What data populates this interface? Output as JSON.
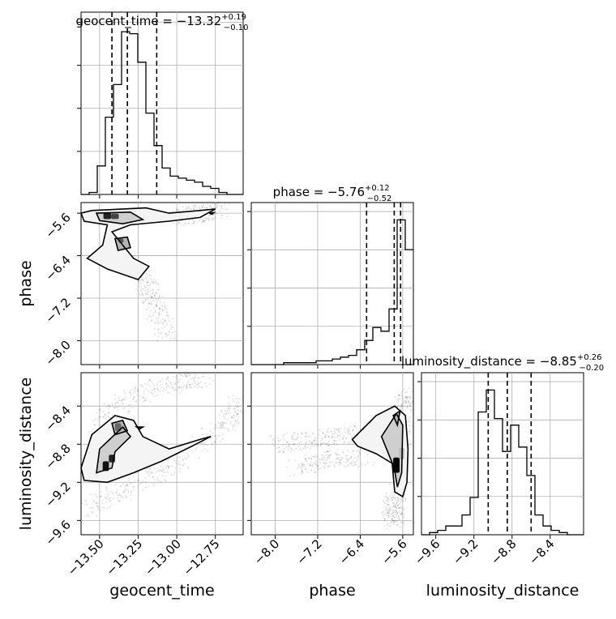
{
  "chart_data": {
    "type": "corner",
    "parameters": [
      {
        "key": "geocent_time",
        "name": "geocent_time",
        "range": [
          -13.62,
          -12.57
        ],
        "ticks": [
          -13.5,
          -13.25,
          -13.0,
          -12.75
        ],
        "tick_labels": [
          "−13.50",
          "−13.25",
          "−13.00",
          "−12.75"
        ],
        "quantiles": [
          -13.42,
          -13.32,
          -13.13
        ],
        "title_prefix": "geocent_time = −13.32",
        "title_plus": "+0.19",
        "title_minus": "−0.10",
        "hist_edges_start": -13.62,
        "hist_bin_width": 0.0525,
        "hist_counts": [
          0,
          1,
          14,
          38,
          54,
          80,
          79,
          65,
          40,
          24,
          13,
          9,
          8,
          7,
          6,
          4,
          3,
          1,
          0,
          0
        ]
      },
      {
        "key": "phase",
        "name": "phase",
        "range": [
          -8.45,
          -5.4
        ],
        "ticks": [
          -8.0,
          -7.2,
          -6.4,
          -5.6
        ],
        "tick_labels": [
          "−8.0",
          "−7.2",
          "−6.4",
          "−5.6"
        ],
        "quantiles": [
          -6.28,
          -5.76,
          -5.64
        ],
        "title_prefix": "phase = −5.76",
        "title_plus": "+0.12",
        "title_minus": "−0.52",
        "hist_edges_start": -8.45,
        "hist_bin_width": 0.1525,
        "hist_counts": [
          0,
          0,
          0,
          0,
          1,
          1,
          1,
          1,
          2,
          2,
          3,
          4,
          5,
          8,
          13,
          20,
          18,
          30,
          78,
          62
        ]
      },
      {
        "key": "luminosity_distance",
        "name": "luminosity_distance",
        "range": [
          -9.75,
          -8.05
        ],
        "ticks": [
          -9.6,
          -9.2,
          -8.8,
          -8.4
        ],
        "tick_labels": [
          "−9.6",
          "−9.2",
          "−8.8",
          "−8.4"
        ],
        "quantiles": [
          -9.05,
          -8.85,
          -8.6
        ],
        "title_prefix": "luminosity_distance = −8.85",
        "title_plus": "+0.26",
        "title_minus": "−0.20",
        "hist_edges_start": -9.75,
        "hist_bin_width": 0.085,
        "hist_counts": [
          0,
          1,
          2,
          4,
          4,
          9,
          17,
          56,
          66,
          53,
          38,
          50,
          40,
          27,
          9,
          4,
          2,
          1,
          0,
          0
        ]
      }
    ],
    "pairs": [
      {
        "x": "geocent_time",
        "y": "phase",
        "contours": [
          [
            [
              -13.55,
              -5.55
            ],
            [
              -13.2,
              -5.5
            ],
            [
              -13.05,
              -5.6
            ],
            [
              -12.85,
              -5.55
            ],
            [
              -12.75,
              -5.52
            ],
            [
              -12.85,
              -5.68
            ],
            [
              -13.05,
              -5.75
            ],
            [
              -13.3,
              -5.82
            ],
            [
              -13.42,
              -5.95
            ],
            [
              -13.35,
              -6.2
            ],
            [
              -13.28,
              -6.45
            ],
            [
              -13.18,
              -6.6
            ],
            [
              -13.25,
              -6.85
            ],
            [
              -13.45,
              -6.65
            ],
            [
              -13.58,
              -6.45
            ],
            [
              -13.48,
              -6.2
            ],
            [
              -13.45,
              -5.82
            ],
            [
              -13.6,
              -5.75
            ],
            [
              -13.62,
              -5.6
            ]
          ],
          [
            [
              -13.52,
              -5.6
            ],
            [
              -13.3,
              -5.58
            ],
            [
              -13.22,
              -5.72
            ],
            [
              -13.35,
              -5.8
            ],
            [
              -13.5,
              -5.74
            ]
          ],
          [
            [
              -13.4,
              -6.08
            ],
            [
              -13.32,
              -6.05
            ],
            [
              -13.3,
              -6.25
            ],
            [
              -13.38,
              -6.3
            ]
          ],
          [
            [
              -12.79,
              -5.6
            ],
            [
              -12.76,
              -5.59
            ],
            [
              -12.77,
              -5.62
            ]
          ]
        ],
        "blobs": [
          {
            "x": -13.45,
            "y": -5.65,
            "w": 0.05,
            "h": 0.12,
            "shade": "#222222"
          },
          {
            "x": -13.4,
            "y": -5.66,
            "w": 0.05,
            "h": 0.1,
            "shade": "#444444"
          },
          {
            "x": -13.36,
            "y": -6.12,
            "w": 0.03,
            "h": 0.08,
            "shade": "#555555"
          }
        ],
        "scatter_segments": [
          [
            [
              -13.38,
              -6.3
            ],
            [
              -13.2,
              -6.9
            ],
            [
              -13.15,
              -7.3
            ],
            [
              -13.05,
              -7.9
            ]
          ],
          [
            [
              -13.0,
              -5.68
            ],
            [
              -12.85,
              -5.62
            ],
            [
              -12.7,
              -5.5
            ]
          ]
        ]
      },
      {
        "x": "geocent_time",
        "y": "luminosity_distance",
        "contours": [
          [
            [
              -13.55,
              -8.7
            ],
            [
              -13.4,
              -8.5
            ],
            [
              -13.28,
              -8.55
            ],
            [
              -13.22,
              -8.72
            ],
            [
              -13.05,
              -8.85
            ],
            [
              -12.85,
              -8.75
            ],
            [
              -12.78,
              -8.72
            ],
            [
              -12.9,
              -8.82
            ],
            [
              -13.1,
              -8.98
            ],
            [
              -13.28,
              -9.1
            ],
            [
              -13.45,
              -9.2
            ],
            [
              -13.6,
              -9.18
            ],
            [
              -13.62,
              -9.05
            ],
            [
              -13.58,
              -8.85
            ]
          ],
          [
            [
              -13.5,
              -8.85
            ],
            [
              -13.35,
              -8.62
            ],
            [
              -13.3,
              -8.72
            ],
            [
              -13.4,
              -8.88
            ],
            [
              -13.42,
              -9.05
            ],
            [
              -13.52,
              -9.1
            ]
          ],
          [
            [
              -13.42,
              -8.58
            ],
            [
              -13.35,
              -8.55
            ],
            [
              -13.32,
              -8.66
            ],
            [
              -13.4,
              -8.7
            ]
          ],
          [
            [
              -13.26,
              -8.62
            ],
            [
              -13.22,
              -8.62
            ],
            [
              -13.24,
              -8.64
            ]
          ]
        ],
        "blobs": [
          {
            "x": -13.46,
            "y": -9.03,
            "w": 0.04,
            "h": 0.1,
            "shade": "#111111"
          },
          {
            "x": -13.42,
            "y": -8.95,
            "w": 0.04,
            "h": 0.08,
            "shade": "#222222"
          },
          {
            "x": -13.38,
            "y": -8.62,
            "w": 0.04,
            "h": 0.08,
            "shade": "#666666"
          }
        ],
        "scatter_segments": [
          [
            [
              -13.6,
              -9.5
            ],
            [
              -13.3,
              -9.25
            ],
            [
              -13.0,
              -9.0
            ],
            [
              -12.7,
              -8.6
            ],
            [
              -12.58,
              -8.35
            ]
          ],
          [
            [
              -13.55,
              -8.6
            ],
            [
              -13.3,
              -8.3
            ],
            [
              -13.0,
              -8.15
            ],
            [
              -12.8,
              -8.1
            ]
          ]
        ]
      },
      {
        "x": "phase",
        "y": "luminosity_distance",
        "contours": [
          [
            [
              -6.55,
              -8.75
            ],
            [
              -6.1,
              -8.5
            ],
            [
              -5.75,
              -8.4
            ],
            [
              -5.55,
              -8.5
            ],
            [
              -5.5,
              -8.85
            ],
            [
              -5.52,
              -9.2
            ],
            [
              -5.6,
              -9.35
            ],
            [
              -5.75,
              -9.3
            ],
            [
              -5.8,
              -9.0
            ],
            [
              -6.1,
              -8.9
            ],
            [
              -6.45,
              -8.82
            ]
          ],
          [
            [
              -6.0,
              -8.72
            ],
            [
              -5.72,
              -8.48
            ],
            [
              -5.6,
              -8.6
            ],
            [
              -5.62,
              -9.1
            ],
            [
              -5.7,
              -9.25
            ],
            [
              -5.76,
              -9.05
            ]
          ],
          [
            [
              -5.78,
              -8.5
            ],
            [
              -5.65,
              -8.45
            ],
            [
              -5.7,
              -8.6
            ]
          ]
        ],
        "blobs": [
          {
            "x": -5.72,
            "y": -9.02,
            "w": 0.12,
            "h": 0.16,
            "shade": "#000000"
          },
          {
            "x": -5.62,
            "y": -8.9,
            "w": 0.1,
            "h": 0.12,
            "shade": "#bbbbbb"
          }
        ],
        "scatter_segments": [
          [
            [
              -8.0,
              -8.8
            ],
            [
              -7.3,
              -8.75
            ],
            [
              -6.6,
              -8.7
            ],
            [
              -6.0,
              -8.7
            ],
            [
              -5.5,
              -8.6
            ]
          ],
          [
            [
              -7.6,
              -9.05
            ],
            [
              -7.0,
              -8.95
            ],
            [
              -6.3,
              -8.95
            ]
          ],
          [
            [
              -5.7,
              -9.3
            ],
            [
              -5.8,
              -9.5
            ],
            [
              -5.75,
              -9.6
            ]
          ],
          [
            [
              -5.6,
              -8.4
            ],
            [
              -5.45,
              -8.3
            ]
          ]
        ]
      }
    ]
  }
}
